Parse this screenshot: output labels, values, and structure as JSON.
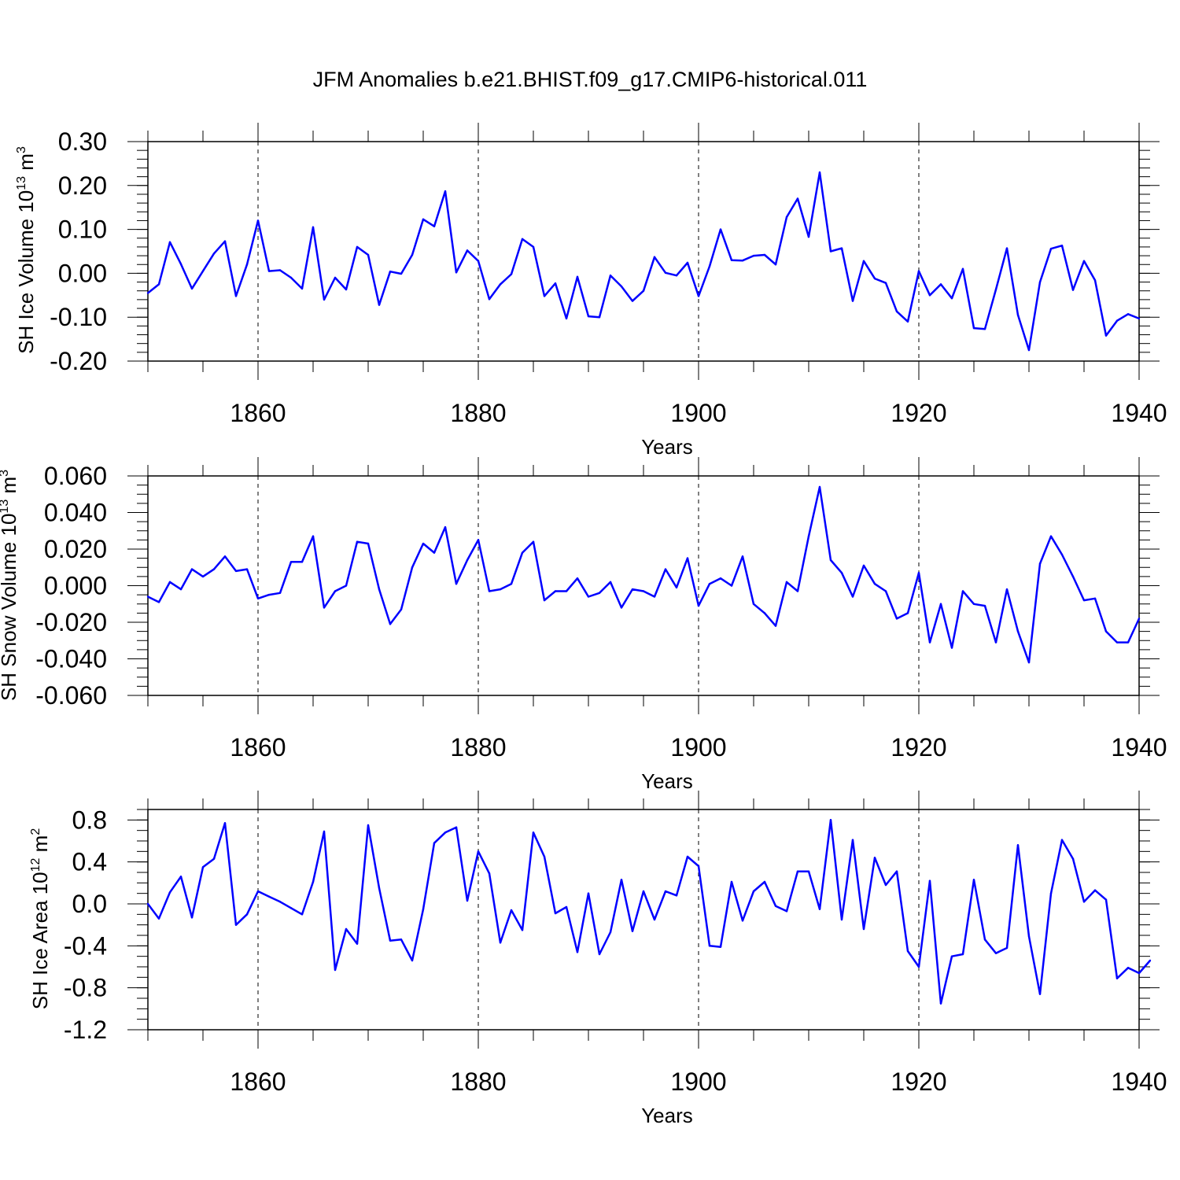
{
  "title": "JFM Anomalies b.e21.BHIST.f09_g17.CMIP6-historical.011",
  "chart_data": [
    {
      "type": "line",
      "title": "JFM Anomalies b.e21.BHIST.f09_g17.CMIP6-historical.011",
      "xlabel": "Years",
      "ylabel": "SH Ice Volume 10",
      "ylabel_exp": "13",
      "ylabel_unit": "m",
      "ylabel_unit_exp": "3",
      "xlim": [
        1850,
        1940
      ],
      "ylim": [
        -0.2,
        0.3
      ],
      "xticks": [
        1860,
        1880,
        1900,
        1920,
        1940
      ],
      "xtick_labels": [
        "1860",
        "1880",
        "1900",
        "1920",
        "1940"
      ],
      "yticks": [
        -0.2,
        -0.1,
        0.0,
        0.1,
        0.2,
        0.3
      ],
      "ytick_labels": [
        "-0.20",
        "-0.10",
        "0.00",
        "0.10",
        "0.20",
        "0.30"
      ],
      "y_minor_step": 0.02,
      "line_color": "#0000ff",
      "x_start": 1850,
      "values": [
        -0.045,
        -0.025,
        0.071,
        0.021,
        -0.035,
        0.005,
        0.045,
        0.073,
        -0.052,
        0.02,
        0.12,
        0.005,
        0.007,
        -0.01,
        -0.035,
        0.105,
        -0.06,
        -0.01,
        -0.037,
        0.06,
        0.042,
        -0.072,
        0.004,
        -0.001,
        0.042,
        0.123,
        0.107,
        0.187,
        0.002,
        0.052,
        0.028,
        -0.059,
        -0.025,
        -0.002,
        0.078,
        0.06,
        -0.052,
        -0.023,
        -0.103,
        -0.008,
        -0.098,
        -0.1,
        -0.005,
        -0.03,
        -0.063,
        -0.04,
        0.037,
        0.001,
        -0.005,
        0.024,
        -0.052,
        0.016,
        0.1,
        0.03,
        0.029,
        0.04,
        0.042,
        0.02,
        0.128,
        0.17,
        0.083,
        0.23,
        0.05,
        0.057,
        -0.063,
        0.028,
        -0.012,
        -0.022,
        -0.087,
        -0.11,
        0.005,
        -0.05,
        -0.025,
        -0.057,
        0.01,
        -0.125,
        -0.127,
        -0.037,
        0.057,
        -0.095,
        -0.175,
        -0.02,
        0.056,
        0.063,
        -0.038,
        0.028,
        -0.016,
        -0.142,
        -0.108,
        -0.093,
        -0.103
      ]
    },
    {
      "type": "line",
      "xlabel": "Years",
      "ylabel": "SH Snow Volume 10",
      "ylabel_exp": "13",
      "ylabel_unit": "m",
      "ylabel_unit_exp": "3",
      "xlim": [
        1850,
        1940
      ],
      "ylim": [
        -0.06,
        0.06
      ],
      "xticks": [
        1860,
        1880,
        1900,
        1920,
        1940
      ],
      "xtick_labels": [
        "1860",
        "1880",
        "1900",
        "1920",
        "1940"
      ],
      "yticks": [
        -0.06,
        -0.04,
        -0.02,
        0.0,
        0.02,
        0.04,
        0.06
      ],
      "ytick_labels": [
        "-0.060",
        "-0.040",
        "-0.020",
        "0.000",
        "0.020",
        "0.040",
        "0.060"
      ],
      "y_minor_step": 0.005,
      "line_color": "#0000ff",
      "x_start": 1850,
      "values": [
        -0.006,
        -0.009,
        0.002,
        -0.002,
        0.009,
        0.005,
        0.009,
        0.016,
        0.008,
        0.009,
        -0.007,
        -0.005,
        -0.004,
        0.013,
        0.013,
        0.027,
        -0.012,
        -0.003,
        0.0,
        0.024,
        0.023,
        -0.002,
        -0.021,
        -0.013,
        0.01,
        0.023,
        0.018,
        0.032,
        0.001,
        0.014,
        0.025,
        -0.003,
        -0.002,
        0.001,
        0.018,
        0.024,
        -0.008,
        -0.003,
        -0.003,
        0.004,
        -0.006,
        -0.004,
        0.002,
        -0.012,
        -0.002,
        -0.003,
        -0.006,
        0.009,
        -0.001,
        0.015,
        -0.011,
        0.001,
        0.004,
        0.0,
        0.016,
        -0.01,
        -0.015,
        -0.022,
        0.002,
        -0.003,
        0.027,
        0.054,
        0.014,
        0.007,
        -0.006,
        0.011,
        0.001,
        -0.003,
        -0.018,
        -0.015,
        0.007,
        -0.031,
        -0.01,
        -0.034,
        -0.003,
        -0.01,
        -0.011,
        -0.031,
        -0.002,
        -0.025,
        -0.042,
        0.012,
        0.027,
        0.017,
        0.005,
        -0.008,
        -0.007,
        -0.025,
        -0.031,
        -0.031,
        -0.018
      ]
    },
    {
      "type": "line",
      "xlabel": "Years",
      "ylabel": "SH Ice Area 10",
      "ylabel_exp": "12",
      "ylabel_unit": "m",
      "ylabel_unit_exp": "2",
      "xlim": [
        1850,
        1940
      ],
      "ylim": [
        -1.2,
        0.9
      ],
      "xticks": [
        1860,
        1880,
        1900,
        1920,
        1940
      ],
      "xtick_labels": [
        "1860",
        "1880",
        "1900",
        "1920",
        "1940"
      ],
      "yticks": [
        -1.2,
        -0.8,
        -0.4,
        0.0,
        0.4,
        0.8
      ],
      "ytick_labels": [
        "-1.2",
        "-0.8",
        "-0.4",
        "0.0",
        "0.4",
        "0.8"
      ],
      "y_minor_step": 0.1,
      "line_color": "#0000ff",
      "x_start": 1850,
      "values": [
        0.0,
        -0.14,
        0.11,
        0.26,
        -0.13,
        0.35,
        0.43,
        0.77,
        -0.2,
        -0.1,
        0.12,
        0.07,
        0.02,
        -0.04,
        -0.1,
        0.21,
        0.69,
        -0.63,
        -0.24,
        -0.38,
        0.75,
        0.15,
        -0.35,
        -0.34,
        -0.54,
        -0.05,
        0.58,
        0.68,
        0.73,
        0.03,
        0.5,
        0.29,
        -0.37,
        -0.06,
        -0.25,
        0.68,
        0.45,
        -0.09,
        -0.03,
        -0.46,
        0.1,
        -0.48,
        -0.27,
        0.23,
        -0.26,
        0.12,
        -0.15,
        0.12,
        0.08,
        0.45,
        0.36,
        -0.4,
        -0.41,
        0.21,
        -0.16,
        0.12,
        0.21,
        -0.02,
        -0.07,
        0.31,
        0.31,
        -0.05,
        0.8,
        -0.15,
        0.61,
        -0.24,
        0.44,
        0.18,
        0.31,
        -0.45,
        -0.6,
        0.22,
        -0.95,
        -0.5,
        -0.48,
        0.23,
        -0.34,
        -0.47,
        -0.42,
        0.56,
        -0.31,
        -0.86,
        0.1,
        0.61,
        0.43,
        0.02,
        0.13,
        0.04,
        -0.71,
        -0.61,
        -0.66,
        -0.54
      ]
    }
  ]
}
